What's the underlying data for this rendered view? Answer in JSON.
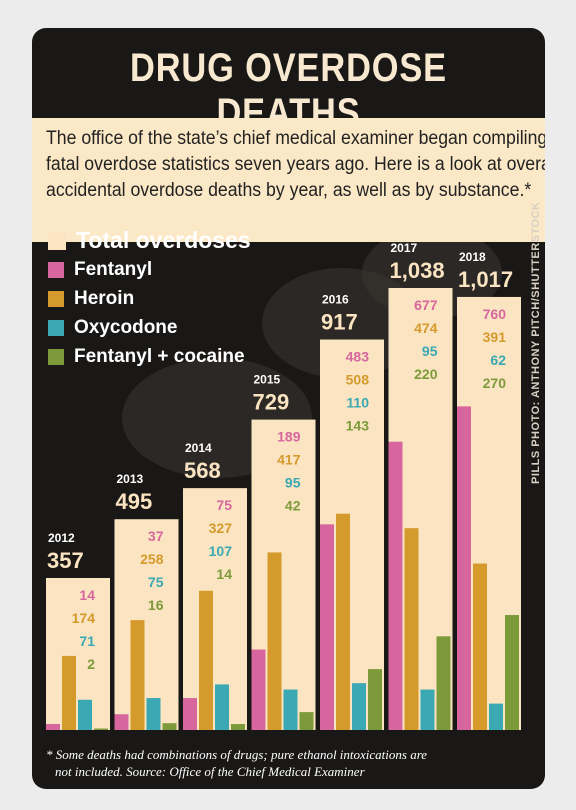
{
  "title": "DRUG OVERDOSE DEATHS",
  "intro_lines": [
    "The office of the state’s chief medical examiner began compiling",
    "fatal overdose statistics seven years ago. Here is a look at overall",
    "accidental overdose deaths by year, as well as by substance.*"
  ],
  "footnote_lines": [
    "* Some deaths had combinations of drugs; pure ethanol intoxications are",
    "not included. Source: Office of the Chief Medical Examiner"
  ],
  "credit": "PILLS PHOTO: ANTHONY PITCH/SHUTTERSTOCK",
  "colors": {
    "total": "#fbe4c1",
    "fentanyl": "#d8669e",
    "heroin": "#d49a2c",
    "oxycodone": "#3aa9b3",
    "fentanyl_cocaine": "#7d9a3a"
  },
  "chart_data": {
    "type": "bar",
    "categories": [
      "2012",
      "2013",
      "2014",
      "2015",
      "2016",
      "2017",
      "2018"
    ],
    "ylim": [
      0,
      1038
    ],
    "legend_position": "top-left",
    "series": [
      {
        "name": "Total overdoses",
        "key": "total",
        "values": [
          357,
          495,
          568,
          729,
          917,
          1038,
          1017
        ]
      },
      {
        "name": "Fentanyl",
        "key": "fentanyl",
        "values": [
          14,
          37,
          75,
          189,
          483,
          677,
          760
        ]
      },
      {
        "name": "Heroin",
        "key": "heroin",
        "values": [
          174,
          258,
          327,
          417,
          508,
          474,
          391
        ]
      },
      {
        "name": "Oxycodone",
        "key": "oxycodone",
        "values": [
          71,
          75,
          107,
          95,
          110,
          95,
          62
        ]
      },
      {
        "name": "Fentanyl + cocaine",
        "key": "fentanyl_cocaine",
        "values": [
          2,
          16,
          14,
          42,
          143,
          220,
          270
        ]
      }
    ]
  }
}
